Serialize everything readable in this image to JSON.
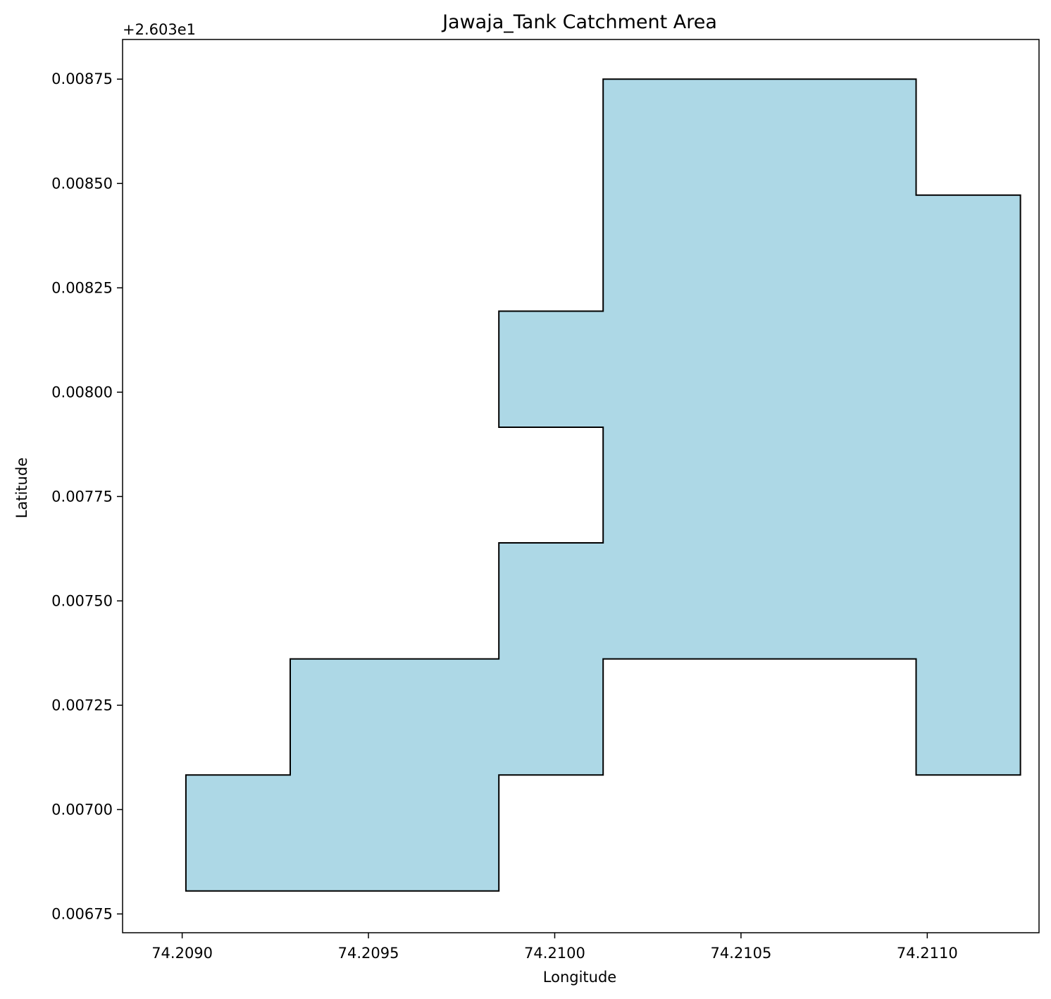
{
  "chart_data": {
    "type": "area",
    "title": "Jawaja_Tank Catchment Area",
    "xlabel": "Longitude",
    "ylabel": "Latitude",
    "y_offset_label": "+2.603e1",
    "xlim": [
      74.20884,
      74.2113
    ],
    "ylim": [
      0.006705,
      0.008845
    ],
    "grid": false,
    "x_ticks": [
      {
        "value": 74.209,
        "label": "74.2090"
      },
      {
        "value": 74.2095,
        "label": "74.2095"
      },
      {
        "value": 74.21,
        "label": "74.2100"
      },
      {
        "value": 74.2105,
        "label": "74.2105"
      },
      {
        "value": 74.211,
        "label": "74.2110"
      }
    ],
    "y_ticks": [
      {
        "value": 0.00675,
        "label": "0.00675"
      },
      {
        "value": 0.007,
        "label": "0.00700"
      },
      {
        "value": 0.00725,
        "label": "0.00725"
      },
      {
        "value": 0.0075,
        "label": "0.00750"
      },
      {
        "value": 0.00775,
        "label": "0.00775"
      },
      {
        "value": 0.008,
        "label": "0.00800"
      },
      {
        "value": 0.00825,
        "label": "0.00825"
      },
      {
        "value": 0.0085,
        "label": "0.00850"
      },
      {
        "value": 0.00875,
        "label": "0.00875"
      }
    ],
    "polygon": {
      "fill": "#add8e6",
      "stroke": "#000000",
      "points": [
        [
          74.20901,
          0.006805
        ],
        [
          74.20985,
          0.006805
        ],
        [
          74.20985,
          0.007083
        ],
        [
          74.21013,
          0.007083
        ],
        [
          74.21013,
          0.007361
        ],
        [
          74.21097,
          0.007361
        ],
        [
          74.21097,
          0.007083
        ],
        [
          74.21125,
          0.007083
        ],
        [
          74.21125,
          0.008472
        ],
        [
          74.21097,
          0.008472
        ],
        [
          74.21097,
          0.00875
        ],
        [
          74.21013,
          0.00875
        ],
        [
          74.21013,
          0.008194
        ],
        [
          74.20985,
          0.008194
        ],
        [
          74.20985,
          0.007916
        ],
        [
          74.21013,
          0.007916
        ],
        [
          74.21013,
          0.007639
        ],
        [
          74.20985,
          0.007639
        ],
        [
          74.20985,
          0.007361
        ],
        [
          74.20929,
          0.007361
        ],
        [
          74.20929,
          0.007083
        ],
        [
          74.20901,
          0.007083
        ]
      ]
    }
  }
}
